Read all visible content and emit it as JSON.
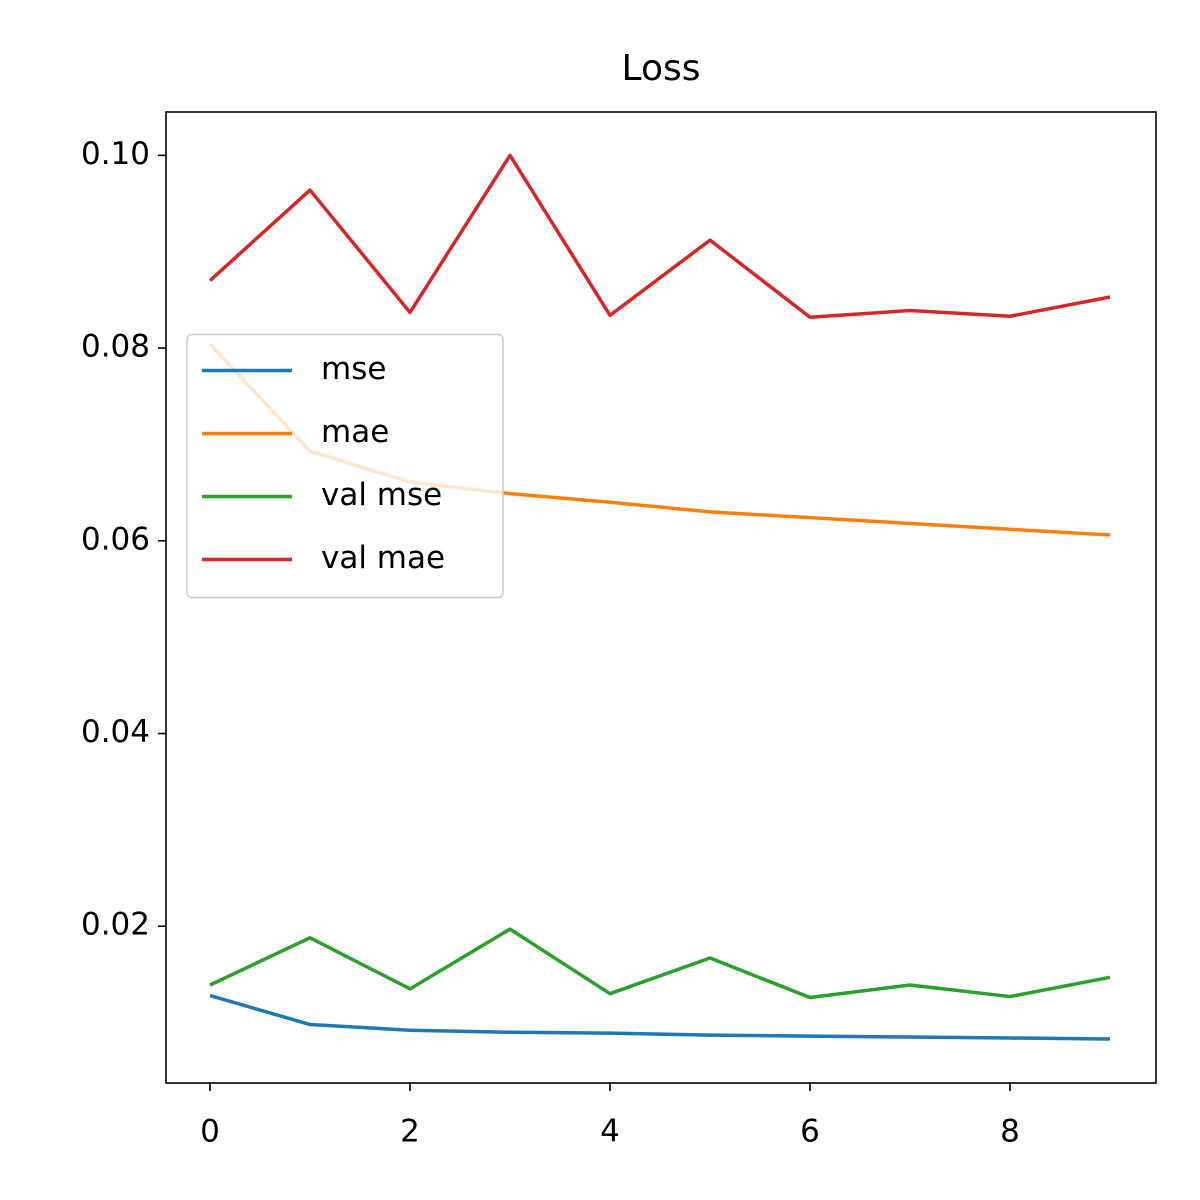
{
  "chart_data": {
    "type": "line",
    "title": "Loss",
    "x": [
      0,
      1,
      2,
      3,
      4,
      5,
      6,
      7,
      8,
      9
    ],
    "series": [
      {
        "name": "mse",
        "color": "#1f77b4",
        "values": [
          0.0128,
          0.0098,
          0.0092,
          0.009,
          0.0089,
          0.0087,
          0.0086,
          0.0085,
          0.0084,
          0.0083
        ]
      },
      {
        "name": "mae",
        "color": "#ff7f0e",
        "values": [
          0.0804,
          0.0693,
          0.0661,
          0.0649,
          0.064,
          0.063,
          0.0624,
          0.0618,
          0.0612,
          0.0606
        ]
      },
      {
        "name": "val mse",
        "color": "#2ca02c",
        "values": [
          0.0139,
          0.0188,
          0.0135,
          0.0197,
          0.013,
          0.0167,
          0.0126,
          0.0139,
          0.0127,
          0.0147
        ]
      },
      {
        "name": "val mae",
        "color": "#d62728",
        "values": [
          0.087,
          0.0964,
          0.0837,
          0.1,
          0.0834,
          0.0912,
          0.0832,
          0.0839,
          0.0833,
          0.0853
        ]
      }
    ],
    "xlim": [
      -0.44,
      9.46
    ],
    "xticks": [
      0,
      2,
      4,
      6,
      8
    ],
    "ylim": [
      0.00373,
      0.1045
    ],
    "yticks": [
      0.02,
      0.04,
      0.06,
      0.08,
      {
        "value": 0.1,
        "label": "0.10"
      }
    ],
    "grid": false,
    "legend": "center left"
  }
}
